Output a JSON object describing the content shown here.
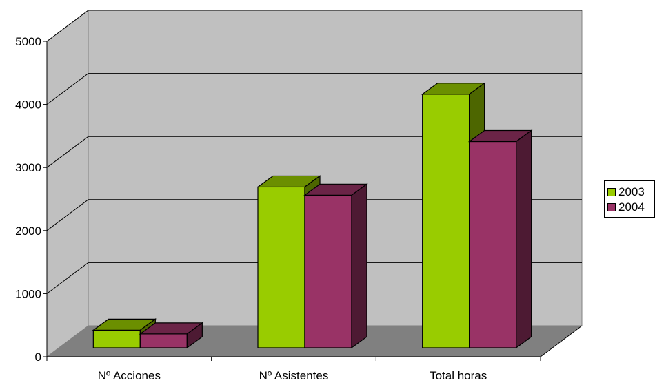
{
  "chart_data": {
    "type": "bar",
    "style": "3d-clustered-column",
    "categories": [
      "Nº Acciones",
      "Nº Asistentes",
      "Total horas"
    ],
    "series": [
      {
        "name": "2003",
        "values": [
          280,
          2550,
          4020
        ],
        "color": "#99CC00",
        "side_color": "#4D6600",
        "top_color": "#6B8F00"
      },
      {
        "name": "2004",
        "values": [
          220,
          2420,
          3270
        ],
        "color": "#993366",
        "side_color": "#4D1A33",
        "top_color": "#6B2447"
      }
    ],
    "ylim": [
      0,
      5000
    ],
    "yticks": [
      "0",
      "1000",
      "2000",
      "3000",
      "4000",
      "5000"
    ],
    "grid": true,
    "legend_position": "right",
    "colors": {
      "wall": "#C0C0C0",
      "floor": "#808080",
      "grid": "#000000"
    }
  }
}
